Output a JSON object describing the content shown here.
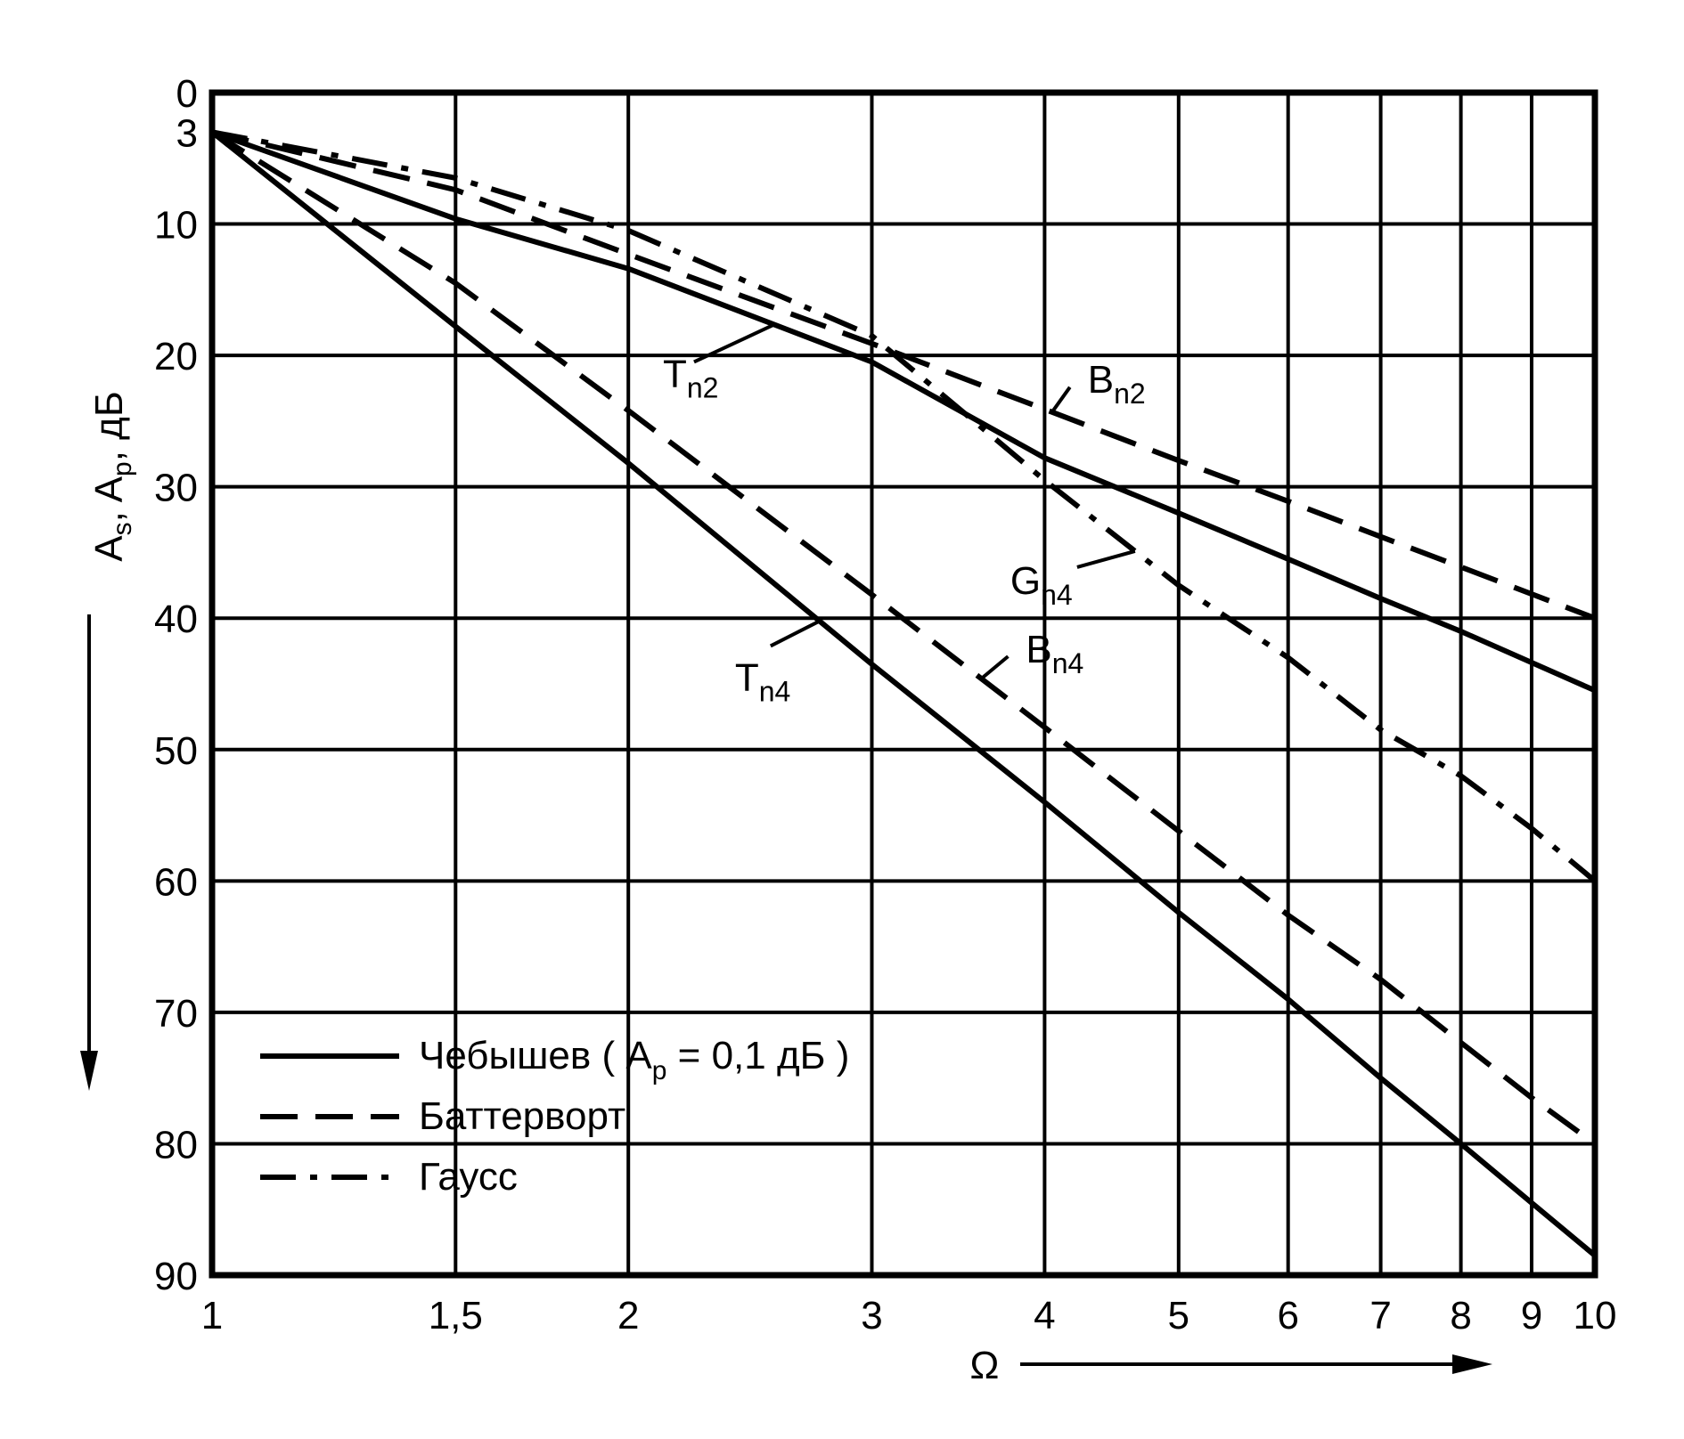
{
  "chart_data": {
    "type": "line",
    "x_scale": "log",
    "y_inverted": true,
    "xlim": [
      1,
      10
    ],
    "ylim": [
      0,
      90
    ],
    "grid": true,
    "xlabel": "Ω",
    "ylabel": {
      "a": "A",
      "a_sub": "s",
      "sep": ", ",
      "b": "A",
      "b_sub": "p",
      "unit": ", дБ"
    },
    "x_ticks": [
      {
        "v": 1,
        "label": "1"
      },
      {
        "v": 1.5,
        "label": "1,5"
      },
      {
        "v": 2,
        "label": "2"
      },
      {
        "v": 3,
        "label": "3"
      },
      {
        "v": 4,
        "label": "4"
      },
      {
        "v": 5,
        "label": "5"
      },
      {
        "v": 6,
        "label": "6"
      },
      {
        "v": 7,
        "label": "7"
      },
      {
        "v": 8,
        "label": "8"
      },
      {
        "v": 9,
        "label": "9"
      },
      {
        "v": 10,
        "label": "10"
      }
    ],
    "y_ticks": [
      {
        "v": 0,
        "label": "0"
      },
      {
        "v": 3,
        "label": "3"
      },
      {
        "v": 10,
        "label": "10"
      },
      {
        "v": 20,
        "label": "20"
      },
      {
        "v": 30,
        "label": "30"
      },
      {
        "v": 40,
        "label": "40"
      },
      {
        "v": 50,
        "label": "50"
      },
      {
        "v": 60,
        "label": "60"
      },
      {
        "v": 70,
        "label": "70"
      },
      {
        "v": 80,
        "label": "80"
      },
      {
        "v": 90,
        "label": "90"
      }
    ],
    "legend_position": "bottom-left",
    "legend": [
      {
        "style": "solid",
        "text": "Чебышев (",
        "sym": "A",
        "sub": "p",
        "rest": "= 0,1 дБ )"
      },
      {
        "style": "dashed",
        "text": "Баттерворт"
      },
      {
        "style": "dashdot",
        "text": "Гаусс"
      }
    ],
    "series": [
      {
        "label": "T",
        "sub": "n2",
        "style": "solid",
        "x": [
          1,
          1.5,
          2,
          3,
          4,
          5,
          6,
          7,
          8,
          10
        ],
        "y": [
          3,
          9.6,
          13.4,
          20.5,
          27.8,
          32,
          35.5,
          38.5,
          41,
          45.5
        ]
      },
      {
        "label": "B",
        "sub": "n2",
        "style": "dashed",
        "x": [
          1,
          1.5,
          2,
          3,
          4,
          5,
          6,
          7,
          8,
          10
        ],
        "y": [
          3,
          7.4,
          12.3,
          19.1,
          24.1,
          28,
          31.1,
          33.8,
          36.1,
          40
        ]
      },
      {
        "label": "G",
        "sub": "n4",
        "style": "dashdot",
        "x": [
          1,
          1.5,
          2,
          3,
          4,
          5,
          6,
          7,
          8,
          9,
          10
        ],
        "y": [
          3,
          6.5,
          10.5,
          18.5,
          29.5,
          37.5,
          43,
          48.5,
          52,
          56,
          60
        ]
      },
      {
        "label": "T",
        "sub": "n4",
        "style": "solid",
        "x": [
          1,
          1.5,
          2,
          3,
          4,
          5,
          6,
          7,
          8,
          9,
          10
        ],
        "y": [
          3,
          17.8,
          28.2,
          43.5,
          54,
          62.4,
          69,
          75,
          80,
          84.5,
          88.5
        ]
      },
      {
        "label": "B",
        "sub": "n4",
        "style": "dashed",
        "x": [
          1,
          1.5,
          2,
          3,
          4,
          5,
          6,
          7,
          8,
          9,
          10
        ],
        "y": [
          3,
          14.5,
          24.2,
          38.2,
          48.3,
          56.2,
          62.6,
          67.5,
          72.3,
          76.5,
          80
        ]
      }
    ]
  }
}
